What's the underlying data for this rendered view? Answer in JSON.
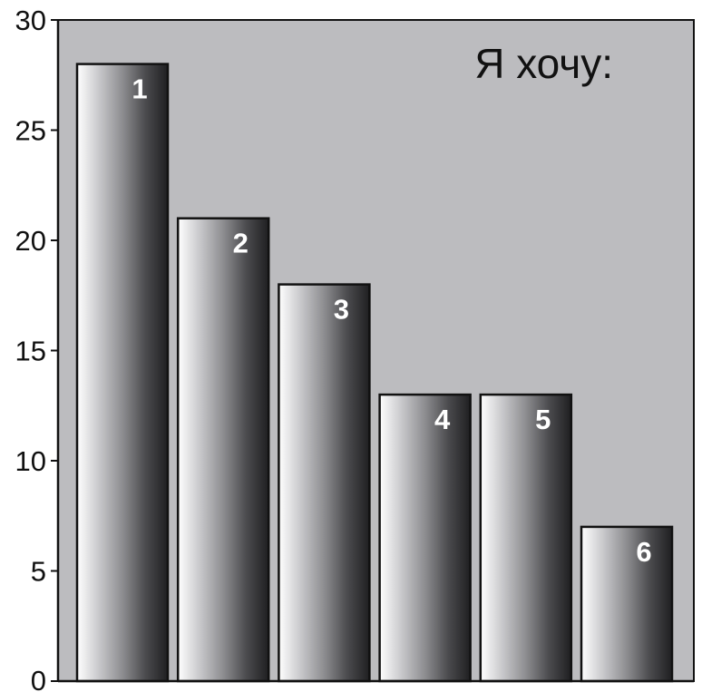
{
  "chart_data": {
    "type": "bar",
    "title": "Я хочу:",
    "xlabel": "",
    "ylabel": "",
    "ylim": [
      0,
      30
    ],
    "yticks": [
      0,
      5,
      10,
      15,
      20,
      25,
      30
    ],
    "grid": false,
    "categories": [
      "1",
      "2",
      "3",
      "4",
      "5",
      "6"
    ],
    "values": [
      28,
      21,
      18,
      13,
      13,
      7
    ],
    "bar_labels": [
      "1",
      "2",
      "3",
      "4",
      "5",
      "6"
    ],
    "style": {
      "plot_background": "#bcbcbf",
      "bar_gradient": [
        "#ffffff",
        "#c6c6c9",
        "#8d8d90",
        "#4c4c4f",
        "#1f1f21"
      ],
      "bar_outline": "#111111",
      "axis_color": "#111111"
    }
  }
}
